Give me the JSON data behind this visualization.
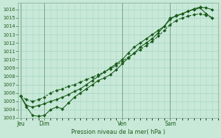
{
  "bg_color": "#c8e8d8",
  "grid_color": "#a8d8c8",
  "plot_bg": "#c8e8d8",
  "line_color": "#1a5c1a",
  "xlabel": "Pression niveau de la mer( hPa )",
  "ylim": [
    1003,
    1016.8
  ],
  "yticks": [
    1003,
    1004,
    1005,
    1006,
    1007,
    1008,
    1009,
    1010,
    1011,
    1012,
    1013,
    1014,
    1015,
    1016
  ],
  "day_labels": [
    "Jeu",
    "Dim",
    "Ven",
    "Sam"
  ],
  "day_positions": [
    0.0,
    2.0,
    8.5,
    12.5
  ],
  "xlim": [
    -0.2,
    16.5
  ],
  "line1_x": [
    0.0,
    0.5,
    1.0,
    1.5,
    2.0,
    2.5,
    3.0,
    3.5,
    4.0,
    4.5,
    5.0,
    5.5,
    6.0,
    6.5,
    7.0,
    7.5,
    8.0,
    8.5,
    9.0,
    9.5,
    10.0,
    10.5,
    11.0,
    11.5,
    12.0,
    12.5,
    13.0,
    13.5,
    14.0,
    14.5,
    15.0,
    15.5,
    16.0
  ],
  "line1_y": [
    1005.6,
    1004.3,
    1003.3,
    1003.2,
    1003.3,
    1004.0,
    1004.3,
    1004.1,
    1004.8,
    1005.5,
    1006.0,
    1006.5,
    1007.0,
    1007.5,
    1007.8,
    1008.2,
    1008.8,
    1009.5,
    1010.2,
    1010.8,
    1011.5,
    1012.0,
    1012.5,
    1013.2,
    1014.0,
    1015.0,
    1015.2,
    1015.5,
    1015.8,
    1016.1,
    1016.3,
    1016.2,
    1016.0
  ],
  "line2_x": [
    0.0,
    0.5,
    1.0,
    1.5,
    2.0,
    2.5,
    3.0,
    3.5,
    4.0,
    4.5,
    5.0,
    5.5,
    6.0,
    6.5,
    7.0,
    7.5,
    8.0,
    8.5,
    9.0,
    9.5,
    10.0,
    10.5,
    11.0,
    11.5,
    12.0,
    12.5,
    13.0,
    13.5,
    14.0,
    14.5,
    15.0,
    15.5,
    16.0
  ],
  "line2_y": [
    1005.6,
    1005.2,
    1005.0,
    1005.2,
    1005.5,
    1006.0,
    1006.3,
    1006.5,
    1006.8,
    1007.0,
    1007.3,
    1007.6,
    1007.9,
    1008.2,
    1008.5,
    1008.9,
    1009.3,
    1009.8,
    1010.3,
    1010.8,
    1011.2,
    1011.7,
    1012.2,
    1012.8,
    1013.5,
    1014.2,
    1014.7,
    1015.0,
    1015.2,
    1015.4,
    1015.5,
    1015.3,
    1015.0
  ],
  "line3_x": [
    0.0,
    0.5,
    1.0,
    1.5,
    2.0,
    2.5,
    3.0,
    3.5,
    4.0,
    4.5,
    5.0,
    5.5,
    6.0,
    6.5,
    7.0,
    7.5,
    8.0,
    8.5,
    9.0,
    9.5,
    10.0,
    10.5,
    11.0,
    11.5,
    12.0,
    12.5,
    13.0,
    13.5,
    14.0,
    14.5,
    15.0,
    15.5,
    16.0
  ],
  "line3_y": [
    1005.6,
    1004.5,
    1004.3,
    1004.5,
    1004.7,
    1005.0,
    1005.2,
    1005.5,
    1005.8,
    1006.2,
    1006.5,
    1007.0,
    1007.5,
    1008.0,
    1008.5,
    1009.0,
    1009.5,
    1010.0,
    1010.8,
    1011.5,
    1012.0,
    1012.5,
    1013.0,
    1013.5,
    1014.0,
    1014.8,
    1015.3,
    1015.5,
    1015.8,
    1016.0,
    1016.2,
    1015.5,
    1015.0
  ]
}
